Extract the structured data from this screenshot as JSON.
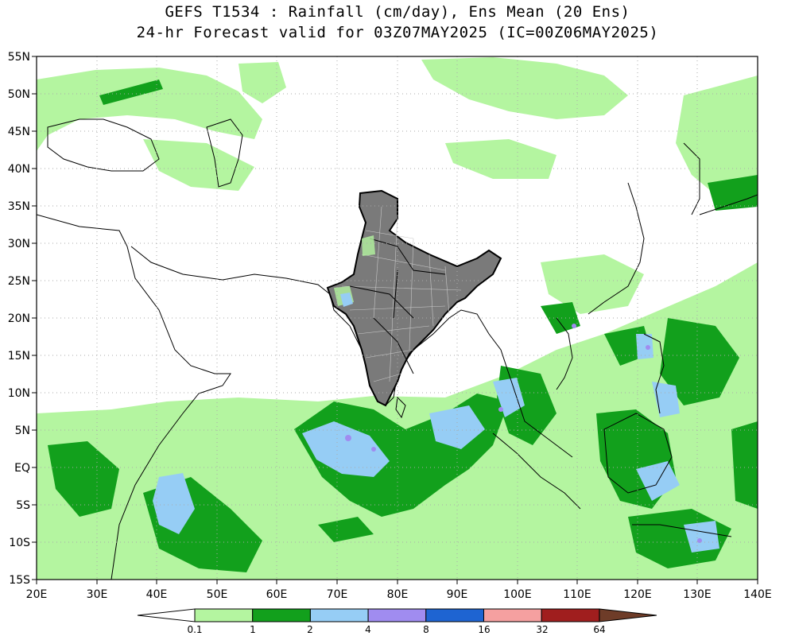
{
  "title_line1": "GEFS T1534 : Rainfall (cm/day), Ens Mean (20 Ens)",
  "title_line2": "24-hr Forecast valid for 03Z07MAY2025 (IC=00Z06MAY2025)",
  "lon_labels": [
    "20E",
    "30E",
    "40E",
    "50E",
    "60E",
    "70E",
    "80E",
    "90E",
    "100E",
    "110E",
    "120E",
    "130E",
    "140E"
  ],
  "lat_labels": [
    "55N",
    "50N",
    "45N",
    "40N",
    "35N",
    "30N",
    "25N",
    "20N",
    "15N",
    "10N",
    "5N",
    "EQ",
    "5S",
    "10S",
    "15S"
  ],
  "colorbar": {
    "thresholds": [
      "0.1",
      "1",
      "2",
      "4",
      "8",
      "16",
      "32",
      "64"
    ],
    "colors": [
      "#ffffff",
      "#b4f5a0",
      "#12a01c",
      "#96cdf5",
      "#a08cf0",
      "#1e64d2",
      "#f5a0a0",
      "#a01e1e",
      "#6e3c28"
    ]
  },
  "legend_colors": {
    "rain_light": "#b4f5a0",
    "rain_moderate": "#12a01c",
    "rain_heavy": "#96cdf5",
    "rain_very_heavy": "#a08cf0",
    "india_fill": "#7a7a7a"
  }
}
